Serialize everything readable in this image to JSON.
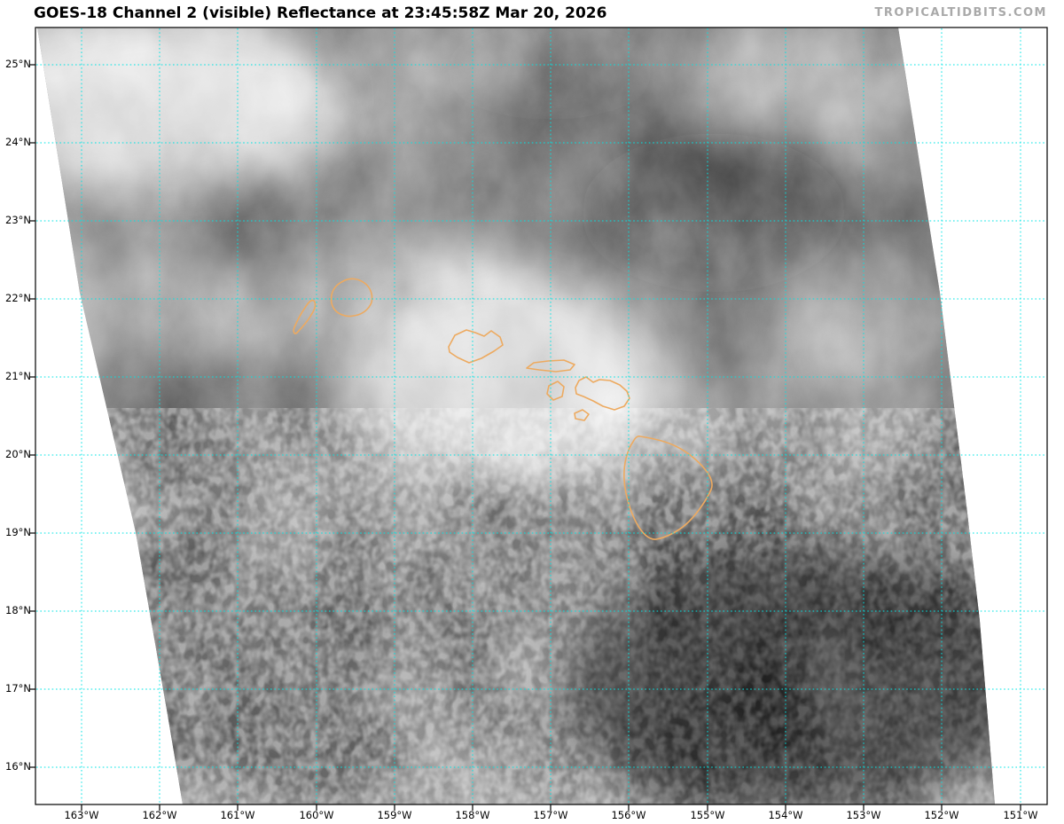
{
  "header": {
    "title": "GOES-18 Channel 2 (visible) Reflectance at 23:45:58Z Mar 20, 2026",
    "watermark": "TROPICALTIDBITS.COM"
  },
  "axes": {
    "lat_ticks": [
      "25°N",
      "24°N",
      "23°N",
      "22°N",
      "21°N",
      "20°N",
      "19°N",
      "18°N",
      "17°N",
      "16°N"
    ],
    "lon_ticks": [
      "163°W",
      "162°W",
      "161°W",
      "160°W",
      "159°W",
      "158°W",
      "157°W",
      "156°W",
      "155°W",
      "154°W",
      "153°W",
      "152°W",
      "151°W"
    ]
  },
  "map": {
    "colors": {
      "gridline": "#00e4e4",
      "coastline": "#edaa60",
      "border": "#000000"
    },
    "coastlines_outlined": [
      "Niihau",
      "Kauai",
      "Oahu",
      "Molokai",
      "Lanai",
      "Maui",
      "Kahoolawe",
      "Hawaii (Big Island)"
    ]
  }
}
